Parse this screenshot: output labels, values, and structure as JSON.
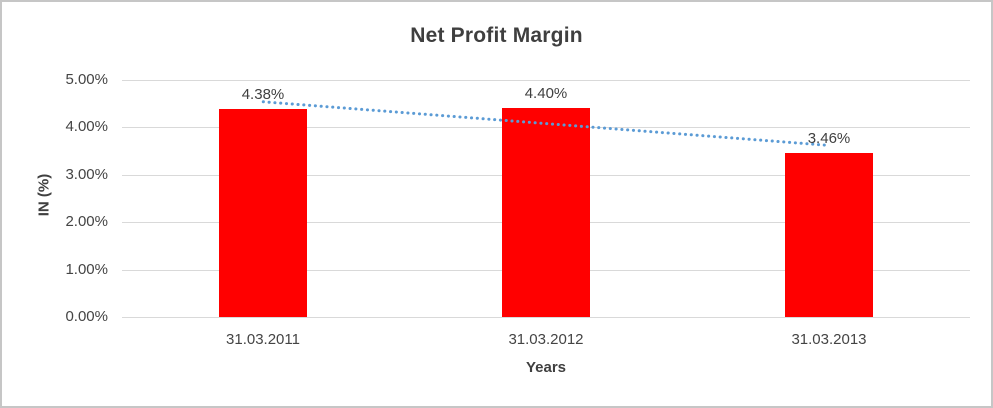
{
  "chart_data": {
    "type": "bar",
    "title": "Net Profit Margin",
    "xlabel": "Years",
    "ylabel": "IN (%)",
    "categories": [
      "31.03.2011",
      "31.03.2012",
      "31.03.2013"
    ],
    "values": [
      4.38,
      4.4,
      3.46
    ],
    "value_labels": [
      "4.38%",
      "4.40%",
      "3.46%"
    ],
    "ylim": [
      0,
      5
    ],
    "ytick_labels": [
      "5.00%",
      "4.00%",
      "3.00%",
      "2.00%",
      "1.00%",
      "0.00%"
    ],
    "grid": true,
    "legend": "none",
    "bar_color": "#ff0000",
    "gridline_color": "#d9d9d9",
    "trendline": {
      "type": "linear",
      "style": "dotted",
      "color": "#5b9bd5",
      "start_value": 4.54,
      "end_value": 3.62
    }
  }
}
